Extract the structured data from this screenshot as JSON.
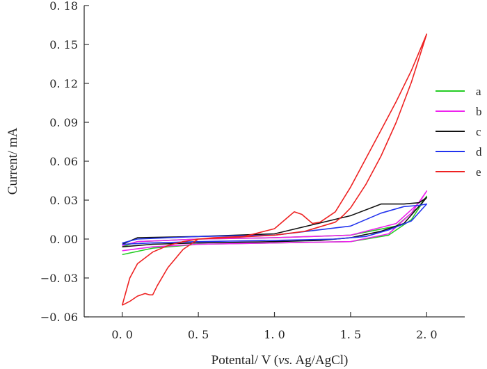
{
  "chart_data": {
    "type": "line",
    "title": "",
    "xlabel": "Potental/ V (vs. Ag/AgCl)",
    "xlabel_parts": {
      "prefix": "Potental/ V (",
      "italic": "vs.",
      "suffix": " Ag/AgCl)"
    },
    "ylabel": "Current/ mA",
    "xlim": [
      -0.25,
      2.25
    ],
    "ylim": [
      -0.06,
      0.18
    ],
    "xticks": [
      0.0,
      0.5,
      1.0,
      1.5,
      2.0
    ],
    "xtick_labels": [
      "0. 0",
      "0. 5",
      "1. 0",
      "1. 5",
      "2. 0"
    ],
    "yticks": [
      0.18,
      0.15,
      0.12,
      0.09,
      0.06,
      0.03,
      0.0,
      -0.03,
      -0.06
    ],
    "ytick_labels": [
      "0. 18",
      "0. 15",
      "0. 12",
      "0. 09",
      "0. 06",
      "0. 03",
      "0. 00",
      "−0. 03",
      "−0. 06"
    ],
    "grid": false,
    "legend_position": "right",
    "series": [
      {
        "name": "a",
        "color": "#22cc22",
        "x": [
          0.0,
          0.2,
          0.5,
          1.0,
          1.5,
          1.75,
          1.9,
          2.0,
          1.95,
          1.8,
          1.5,
          1.0,
          0.5,
          0.1,
          0.0
        ],
        "y": [
          -0.012,
          -0.007,
          -0.004,
          -0.003,
          -0.002,
          0.003,
          0.015,
          0.033,
          0.025,
          0.01,
          0.003,
          0.001,
          0.0,
          -0.002,
          -0.006
        ]
      },
      {
        "name": "b",
        "color": "#ee22ee",
        "x": [
          0.0,
          0.2,
          0.5,
          1.0,
          1.5,
          1.75,
          1.9,
          2.0,
          1.95,
          1.8,
          1.5,
          1.0,
          0.5,
          0.1,
          0.0
        ],
        "y": [
          -0.009,
          -0.006,
          -0.004,
          -0.003,
          -0.002,
          0.004,
          0.02,
          0.037,
          0.028,
          0.012,
          0.003,
          0.001,
          0.0,
          -0.002,
          -0.005
        ]
      },
      {
        "name": "c",
        "color": "#111111",
        "x": [
          0.0,
          0.2,
          0.5,
          1.0,
          1.3,
          1.5,
          1.7,
          1.85,
          2.0,
          1.95,
          1.85,
          1.7,
          1.5,
          1.0,
          0.5,
          0.1,
          0.0
        ],
        "y": [
          -0.006,
          -0.004,
          -0.003,
          -0.002,
          -0.001,
          0.001,
          0.006,
          0.012,
          0.032,
          0.028,
          0.027,
          0.027,
          0.018,
          0.004,
          0.002,
          0.001,
          -0.004
        ]
      },
      {
        "name": "d",
        "color": "#2233ee",
        "x": [
          0.0,
          0.2,
          0.5,
          1.0,
          1.4,
          1.6,
          1.75,
          1.9,
          2.0,
          1.95,
          1.85,
          1.7,
          1.5,
          1.0,
          0.5,
          0.1,
          0.0
        ],
        "y": [
          -0.004,
          -0.003,
          -0.002,
          -0.001,
          0.0,
          0.002,
          0.007,
          0.014,
          0.027,
          0.026,
          0.025,
          0.02,
          0.01,
          0.003,
          0.002,
          0.0,
          -0.003
        ]
      },
      {
        "name": "e",
        "color": "#ee2222",
        "x": [
          0.0,
          0.05,
          0.1,
          0.15,
          0.18,
          0.2,
          0.23,
          0.3,
          0.4,
          0.5,
          0.6,
          0.8,
          1.0,
          1.1,
          1.13,
          1.18,
          1.25,
          1.3,
          1.4,
          1.5,
          1.6,
          1.7,
          1.8,
          1.9,
          2.0,
          1.9,
          1.8,
          1.7,
          1.6,
          1.5,
          1.45,
          1.4,
          1.2,
          1.0,
          0.7,
          0.5,
          0.4,
          0.3,
          0.2,
          0.1,
          0.05,
          0.0
        ],
        "y": [
          -0.051,
          -0.048,
          -0.044,
          -0.042,
          -0.043,
          -0.043,
          -0.036,
          -0.022,
          -0.008,
          0.0,
          0.001,
          0.002,
          0.008,
          0.018,
          0.021,
          0.019,
          0.012,
          0.013,
          0.021,
          0.04,
          0.062,
          0.084,
          0.106,
          0.13,
          0.158,
          0.121,
          0.09,
          0.064,
          0.042,
          0.024,
          0.018,
          0.013,
          0.006,
          0.003,
          0.001,
          0.0,
          -0.002,
          -0.005,
          -0.01,
          -0.019,
          -0.03,
          -0.051
        ]
      }
    ]
  }
}
